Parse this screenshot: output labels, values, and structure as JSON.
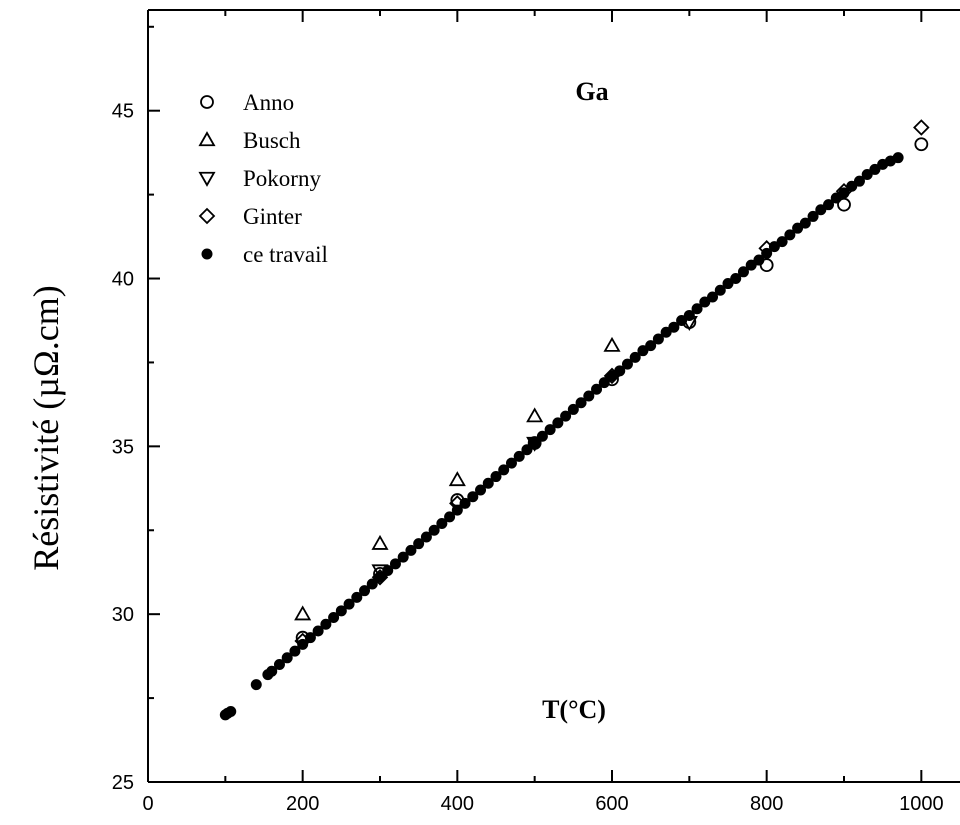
{
  "chart_data": {
    "type": "scatter",
    "title": "Ga",
    "xlabel": "T(°C)",
    "ylabel": "Résistivité (µΩ.cm)",
    "xlim": [
      0,
      1050
    ],
    "ylim": [
      25,
      48
    ],
    "xticks": [
      0,
      200,
      400,
      600,
      800,
      1000
    ],
    "yticks": [
      25,
      30,
      35,
      40,
      45
    ],
    "legend_position": "top-left",
    "series": [
      {
        "name": "Anno",
        "marker": "circle-open",
        "x": [
          200,
          300,
          400,
          500,
          600,
          700,
          800,
          900,
          1000
        ],
        "y": [
          29.3,
          31.2,
          33.4,
          35.1,
          37.0,
          38.7,
          40.4,
          42.2,
          44.0
        ]
      },
      {
        "name": "Busch",
        "marker": "triangle-up-open",
        "x": [
          200,
          300,
          400,
          500,
          600
        ],
        "y": [
          30.0,
          32.1,
          34.0,
          35.9,
          38.0
        ]
      },
      {
        "name": "Pokorny",
        "marker": "triangle-down-open",
        "x": [
          300,
          500,
          700
        ],
        "y": [
          31.3,
          35.1,
          38.7
        ]
      },
      {
        "name": "Ginter",
        "marker": "diamond-open",
        "x": [
          200,
          300,
          400,
          600,
          800,
          900,
          1000
        ],
        "y": [
          29.2,
          31.1,
          33.3,
          37.1,
          40.9,
          42.6,
          44.5
        ]
      },
      {
        "name": "ce travail",
        "marker": "circle-filled",
        "x": [
          100,
          103,
          107,
          140,
          155,
          160,
          170,
          180,
          190,
          200,
          210,
          220,
          230,
          240,
          250,
          260,
          270,
          280,
          290,
          300,
          310,
          320,
          330,
          340,
          350,
          360,
          370,
          380,
          390,
          400,
          410,
          420,
          430,
          440,
          450,
          460,
          470,
          480,
          490,
          500,
          510,
          520,
          530,
          540,
          550,
          560,
          570,
          580,
          590,
          600,
          610,
          620,
          630,
          640,
          650,
          660,
          670,
          680,
          690,
          700,
          710,
          720,
          730,
          740,
          750,
          760,
          770,
          780,
          790,
          800,
          810,
          820,
          830,
          840,
          850,
          860,
          870,
          880,
          890,
          900,
          910,
          920,
          930,
          940,
          950,
          960,
          970
        ],
        "y": [
          27.0,
          27.05,
          27.1,
          27.9,
          28.2,
          28.3,
          28.5,
          28.7,
          28.9,
          29.1,
          29.3,
          29.5,
          29.7,
          29.9,
          30.1,
          30.3,
          30.5,
          30.7,
          30.9,
          31.1,
          31.3,
          31.5,
          31.7,
          31.9,
          32.1,
          32.3,
          32.5,
          32.7,
          32.9,
          33.1,
          33.3,
          33.5,
          33.7,
          33.9,
          34.1,
          34.3,
          34.5,
          34.7,
          34.9,
          35.1,
          35.3,
          35.5,
          35.7,
          35.9,
          36.1,
          36.3,
          36.5,
          36.7,
          36.9,
          37.1,
          37.25,
          37.45,
          37.65,
          37.85,
          38.0,
          38.2,
          38.4,
          38.55,
          38.75,
          38.9,
          39.1,
          39.3,
          39.45,
          39.65,
          39.85,
          40.0,
          40.2,
          40.4,
          40.55,
          40.75,
          40.95,
          41.1,
          41.3,
          41.5,
          41.65,
          41.85,
          42.05,
          42.2,
          42.4,
          42.55,
          42.75,
          42.9,
          43.1,
          43.25,
          43.4,
          43.5,
          43.6
        ]
      }
    ]
  }
}
